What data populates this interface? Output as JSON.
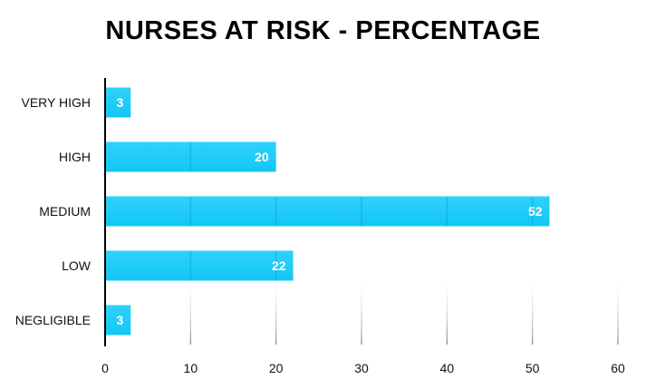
{
  "chart_data": {
    "type": "bar",
    "orientation": "horizontal",
    "title": "NURSES AT RISK - PERCENTAGE",
    "categories": [
      "VERY HIGH",
      "HIGH",
      "MEDIUM",
      "LOW",
      "NEGLIGIBLE"
    ],
    "values": [
      3,
      20,
      52,
      22,
      3
    ],
    "data_labels": [
      "3",
      "20",
      "52",
      "22",
      "3"
    ],
    "x_ticks": [
      "0",
      "10",
      "20",
      "30",
      "40",
      "50",
      "60"
    ],
    "xlim": [
      0,
      60
    ],
    "xlabel": "",
    "ylabel": "",
    "grid": true,
    "colors": {
      "bar": "#12c6f5",
      "bar_edge": "#0aa6dc",
      "grid": "#d6d6d6",
      "axis": "#000000"
    }
  }
}
